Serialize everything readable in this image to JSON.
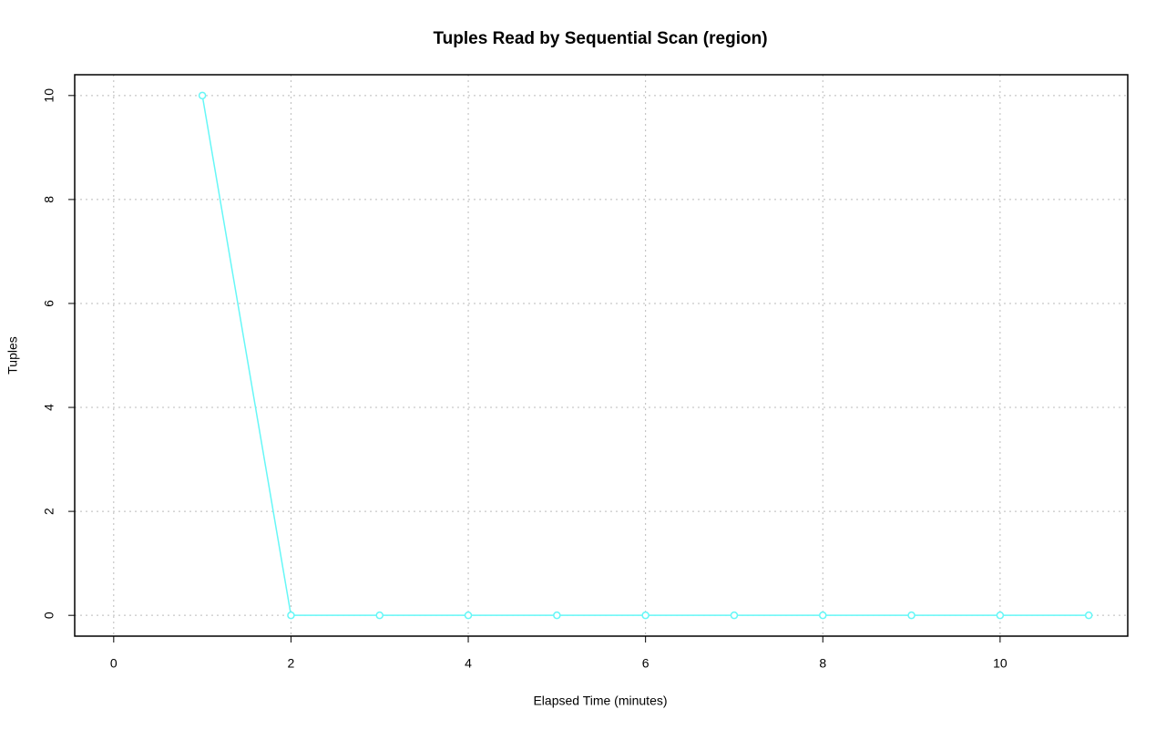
{
  "chart_data": {
    "type": "line",
    "title": "Tuples Read by Sequential Scan (region)",
    "x_label": "Elapsed Time (minutes)",
    "y_label": "Tuples",
    "x": [
      1,
      2,
      3,
      4,
      5,
      6,
      7,
      8,
      9,
      10,
      11
    ],
    "series": [
      {
        "name": "region",
        "color": "#66f7f7",
        "values": [
          10,
          0,
          0,
          0,
          0,
          0,
          0,
          0,
          0,
          0,
          0
        ]
      }
    ],
    "xlim": [
      -0.44,
      11.44
    ],
    "xticks": [
      0,
      2,
      4,
      6,
      8,
      10
    ],
    "ylim": [
      -0.4,
      10.4
    ],
    "yticks": [
      0,
      2,
      4,
      6,
      8,
      10
    ],
    "grid": true
  }
}
